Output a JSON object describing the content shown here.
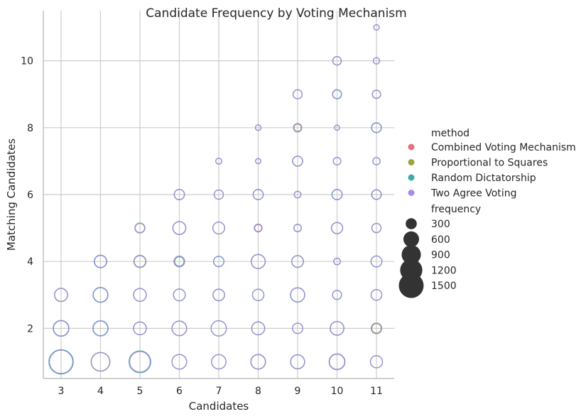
{
  "chart_data": {
    "type": "scatter",
    "title": "Candidate Frequency by Voting Mechanism",
    "xlabel": "Candidates",
    "ylabel": "Matching Candidates",
    "xlim": [
      2.55,
      11.45
    ],
    "ylim": [
      0.5,
      11.5
    ],
    "x_ticks": [
      3,
      4,
      5,
      6,
      7,
      8,
      9,
      10,
      11
    ],
    "y_ticks": [
      2,
      4,
      6,
      8,
      10
    ],
    "grid": true,
    "legend_position": "right",
    "legend": {
      "hue_title": "method",
      "size_title": "frequency",
      "size_levels": [
        300,
        600,
        900,
        1200,
        1500
      ]
    },
    "series": [
      {
        "name": "Combined Voting Mechanism",
        "color": "#e8717f",
        "points": [
          [
            3,
            1,
            1300
          ],
          [
            3,
            2,
            560
          ],
          [
            3,
            3,
            380
          ],
          [
            4,
            1,
            820
          ],
          [
            4,
            2,
            520
          ],
          [
            4,
            3,
            500
          ],
          [
            4,
            4,
            330
          ],
          [
            5,
            1,
            980
          ],
          [
            5,
            2,
            370
          ],
          [
            5,
            3,
            370
          ],
          [
            5,
            4,
            330
          ],
          [
            5,
            5,
            200
          ],
          [
            6,
            1,
            490
          ],
          [
            6,
            2,
            480
          ],
          [
            6,
            3,
            320
          ],
          [
            6,
            4,
            240
          ],
          [
            6,
            5,
            380
          ],
          [
            6,
            6,
            230
          ],
          [
            7,
            1,
            470
          ],
          [
            7,
            2,
            530
          ],
          [
            7,
            3,
            310
          ],
          [
            7,
            4,
            250
          ],
          [
            7,
            5,
            320
          ],
          [
            7,
            6,
            190
          ],
          [
            7,
            7,
            80
          ],
          [
            8,
            1,
            470
          ],
          [
            8,
            2,
            390
          ],
          [
            8,
            3,
            300
          ],
          [
            8,
            4,
            440
          ],
          [
            8,
            5,
            110
          ],
          [
            8,
            6,
            240
          ],
          [
            8,
            7,
            60
          ],
          [
            8,
            8,
            70
          ],
          [
            9,
            1,
            460
          ],
          [
            9,
            2,
            240
          ],
          [
            9,
            3,
            450
          ],
          [
            9,
            4,
            310
          ],
          [
            9,
            5,
            130
          ],
          [
            9,
            6,
            100
          ],
          [
            9,
            7,
            230
          ],
          [
            9,
            8,
            170
          ],
          [
            9,
            9,
            180
          ],
          [
            10,
            1,
            530
          ],
          [
            10,
            2,
            420
          ],
          [
            10,
            3,
            190
          ],
          [
            10,
            4,
            100
          ],
          [
            10,
            5,
            280
          ],
          [
            10,
            6,
            240
          ],
          [
            10,
            7,
            130
          ],
          [
            10,
            8,
            60
          ],
          [
            10,
            9,
            190
          ],
          [
            10,
            10,
            160
          ],
          [
            11,
            1,
            330
          ],
          [
            11,
            2,
            270
          ],
          [
            11,
            3,
            260
          ],
          [
            11,
            4,
            280
          ],
          [
            11,
            5,
            190
          ],
          [
            11,
            6,
            210
          ],
          [
            11,
            7,
            120
          ],
          [
            11,
            8,
            220
          ],
          [
            11,
            9,
            160
          ],
          [
            11,
            10,
            90
          ],
          [
            11,
            11,
            70
          ]
        ]
      },
      {
        "name": "Proportional to Squares",
        "color": "#9aa63a",
        "points": [
          [
            3,
            1,
            1330
          ],
          [
            3,
            2,
            580
          ],
          [
            3,
            3,
            400
          ],
          [
            4,
            1,
            840
          ],
          [
            4,
            2,
            540
          ],
          [
            4,
            3,
            520
          ],
          [
            4,
            4,
            350
          ],
          [
            5,
            1,
            1040
          ],
          [
            5,
            2,
            390
          ],
          [
            5,
            3,
            390
          ],
          [
            5,
            4,
            360
          ],
          [
            5,
            5,
            210
          ],
          [
            6,
            1,
            500
          ],
          [
            6,
            2,
            500
          ],
          [
            6,
            3,
            330
          ],
          [
            6,
            4,
            280
          ],
          [
            6,
            5,
            400
          ],
          [
            6,
            6,
            240
          ],
          [
            7,
            1,
            480
          ],
          [
            7,
            2,
            550
          ],
          [
            7,
            3,
            320
          ],
          [
            7,
            4,
            260
          ],
          [
            7,
            5,
            340
          ],
          [
            7,
            6,
            200
          ],
          [
            7,
            7,
            85
          ],
          [
            8,
            1,
            490
          ],
          [
            8,
            2,
            410
          ],
          [
            8,
            3,
            310
          ],
          [
            8,
            4,
            460
          ],
          [
            8,
            5,
            150
          ],
          [
            8,
            6,
            250
          ],
          [
            8,
            7,
            65
          ],
          [
            8,
            8,
            75
          ],
          [
            9,
            1,
            480
          ],
          [
            9,
            2,
            250
          ],
          [
            9,
            3,
            470
          ],
          [
            9,
            4,
            330
          ],
          [
            9,
            5,
            140
          ],
          [
            9,
            6,
            105
          ],
          [
            9,
            7,
            250
          ],
          [
            9,
            8,
            120
          ],
          [
            9,
            9,
            190
          ],
          [
            10,
            1,
            570
          ],
          [
            10,
            2,
            440
          ],
          [
            10,
            3,
            200
          ],
          [
            10,
            4,
            105
          ],
          [
            10,
            5,
            300
          ],
          [
            10,
            6,
            250
          ],
          [
            10,
            7,
            135
          ],
          [
            10,
            8,
            60
          ],
          [
            10,
            9,
            200
          ],
          [
            10,
            10,
            170
          ],
          [
            11,
            1,
            350
          ],
          [
            11,
            2,
            200
          ],
          [
            11,
            3,
            270
          ],
          [
            11,
            4,
            290
          ],
          [
            11,
            5,
            200
          ],
          [
            11,
            6,
            220
          ],
          [
            11,
            7,
            125
          ],
          [
            11,
            8,
            230
          ],
          [
            11,
            9,
            170
          ],
          [
            11,
            10,
            95
          ],
          [
            11,
            11,
            70
          ]
        ]
      },
      {
        "name": "Random Dictatorship",
        "color": "#3aada8",
        "points": [
          [
            3,
            1,
            1400
          ],
          [
            3,
            2,
            540
          ],
          [
            3,
            3,
            420
          ],
          [
            4,
            1,
            780
          ],
          [
            4,
            2,
            500
          ],
          [
            4,
            3,
            480
          ],
          [
            4,
            4,
            380
          ],
          [
            5,
            1,
            1120
          ],
          [
            5,
            2,
            400
          ],
          [
            5,
            3,
            400
          ],
          [
            5,
            4,
            300
          ],
          [
            5,
            5,
            240
          ],
          [
            6,
            1,
            520
          ],
          [
            6,
            2,
            520
          ],
          [
            6,
            3,
            340
          ],
          [
            6,
            4,
            200
          ],
          [
            6,
            5,
            380
          ],
          [
            6,
            6,
            260
          ],
          [
            7,
            1,
            500
          ],
          [
            7,
            2,
            560
          ],
          [
            7,
            3,
            300
          ],
          [
            7,
            4,
            240
          ],
          [
            7,
            5,
            320
          ],
          [
            7,
            6,
            210
          ],
          [
            7,
            7,
            90
          ],
          [
            8,
            1,
            520
          ],
          [
            8,
            2,
            380
          ],
          [
            8,
            3,
            320
          ],
          [
            8,
            4,
            480
          ],
          [
            8,
            5,
            130
          ],
          [
            8,
            6,
            230
          ],
          [
            8,
            7,
            70
          ],
          [
            8,
            8,
            80
          ],
          [
            9,
            1,
            440
          ],
          [
            9,
            2,
            260
          ],
          [
            9,
            3,
            490
          ],
          [
            9,
            4,
            320
          ],
          [
            9,
            5,
            120
          ],
          [
            9,
            6,
            110
          ],
          [
            9,
            7,
            220
          ],
          [
            9,
            8,
            150
          ],
          [
            9,
            9,
            200
          ],
          [
            10,
            1,
            600
          ],
          [
            10,
            2,
            460
          ],
          [
            10,
            3,
            180
          ],
          [
            10,
            4,
            110
          ],
          [
            10,
            5,
            290
          ],
          [
            10,
            6,
            230
          ],
          [
            10,
            7,
            140
          ],
          [
            10,
            8,
            65
          ],
          [
            10,
            9,
            170
          ],
          [
            10,
            10,
            180
          ],
          [
            11,
            1,
            340
          ],
          [
            11,
            2,
            260
          ],
          [
            11,
            3,
            280
          ],
          [
            11,
            4,
            270
          ],
          [
            11,
            5,
            200
          ],
          [
            11,
            6,
            200
          ],
          [
            11,
            7,
            130
          ],
          [
            11,
            8,
            210
          ],
          [
            11,
            9,
            150
          ],
          [
            11,
            10,
            100
          ],
          [
            11,
            11,
            75
          ]
        ]
      },
      {
        "name": "Two Agree Voting",
        "color": "#a78bf0",
        "points": [
          [
            3,
            1,
            1250
          ],
          [
            3,
            2,
            600
          ],
          [
            3,
            3,
            410
          ],
          [
            4,
            1,
            800
          ],
          [
            4,
            2,
            560
          ],
          [
            4,
            3,
            540
          ],
          [
            4,
            4,
            340
          ],
          [
            5,
            1,
            1000
          ],
          [
            5,
            2,
            380
          ],
          [
            5,
            3,
            380
          ],
          [
            5,
            4,
            320
          ],
          [
            5,
            5,
            220
          ],
          [
            6,
            1,
            510
          ],
          [
            6,
            2,
            490
          ],
          [
            6,
            3,
            320
          ],
          [
            6,
            4,
            260
          ],
          [
            6,
            5,
            410
          ],
          [
            6,
            6,
            250
          ],
          [
            7,
            1,
            490
          ],
          [
            7,
            2,
            540
          ],
          [
            7,
            3,
            330
          ],
          [
            7,
            4,
            270
          ],
          [
            7,
            5,
            330
          ],
          [
            7,
            6,
            200
          ],
          [
            7,
            7,
            80
          ],
          [
            8,
            1,
            500
          ],
          [
            8,
            2,
            400
          ],
          [
            8,
            3,
            300
          ],
          [
            8,
            4,
            450
          ],
          [
            8,
            5,
            140
          ],
          [
            8,
            6,
            250
          ],
          [
            8,
            7,
            60
          ],
          [
            8,
            8,
            70
          ],
          [
            9,
            1,
            470
          ],
          [
            9,
            2,
            250
          ],
          [
            9,
            3,
            460
          ],
          [
            9,
            4,
            340
          ],
          [
            9,
            5,
            130
          ],
          [
            9,
            6,
            100
          ],
          [
            9,
            7,
            240
          ],
          [
            9,
            8,
            140
          ],
          [
            9,
            9,
            190
          ],
          [
            10,
            1,
            560
          ],
          [
            10,
            2,
            430
          ],
          [
            10,
            3,
            200
          ],
          [
            10,
            4,
            100
          ],
          [
            10,
            5,
            310
          ],
          [
            10,
            6,
            260
          ],
          [
            10,
            7,
            130
          ],
          [
            10,
            8,
            60
          ],
          [
            10,
            9,
            200
          ],
          [
            10,
            10,
            170
          ],
          [
            11,
            1,
            350
          ],
          [
            11,
            2,
            250
          ],
          [
            11,
            3,
            270
          ],
          [
            11,
            4,
            290
          ],
          [
            11,
            5,
            210
          ],
          [
            11,
            6,
            230
          ],
          [
            11,
            7,
            120
          ],
          [
            11,
            8,
            240
          ],
          [
            11,
            9,
            160
          ],
          [
            11,
            10,
            90
          ],
          [
            11,
            11,
            70
          ]
        ]
      }
    ]
  }
}
